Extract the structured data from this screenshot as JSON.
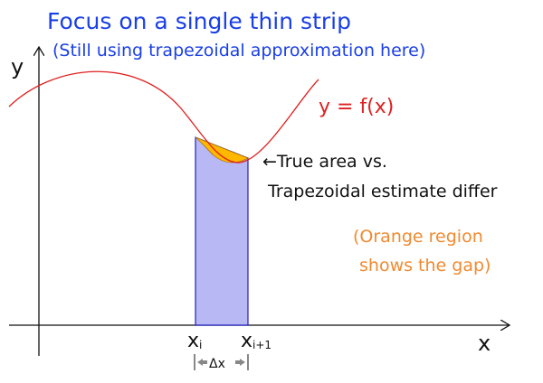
{
  "title": "Focus on a single thin strip",
  "subtitle": "(Still using trapezoidal approximation here)",
  "axis_labels": {
    "y": "y",
    "x": "x"
  },
  "curve_label": "y = f(x)",
  "arrow_note": {
    "line1": "←True area vs.",
    "line2": "Trapezoidal estimate differ"
  },
  "gap_note": {
    "line1": "(Orange region",
    "line2": "shows the gap)"
  },
  "ticks": {
    "left": "x",
    "left_sub": "i",
    "right": "x",
    "right_sub": "i+1"
  },
  "delta_label": "Δx",
  "colors": {
    "title": "#1a3fe6",
    "curve": "#e02020",
    "trapezoid_fill": "#b8b8f5",
    "trapezoid_stroke": "#2020c0",
    "gap_fill": "#ffb800",
    "gap_note": "#f08a30",
    "axis": "#111111",
    "text": "#111111"
  }
}
